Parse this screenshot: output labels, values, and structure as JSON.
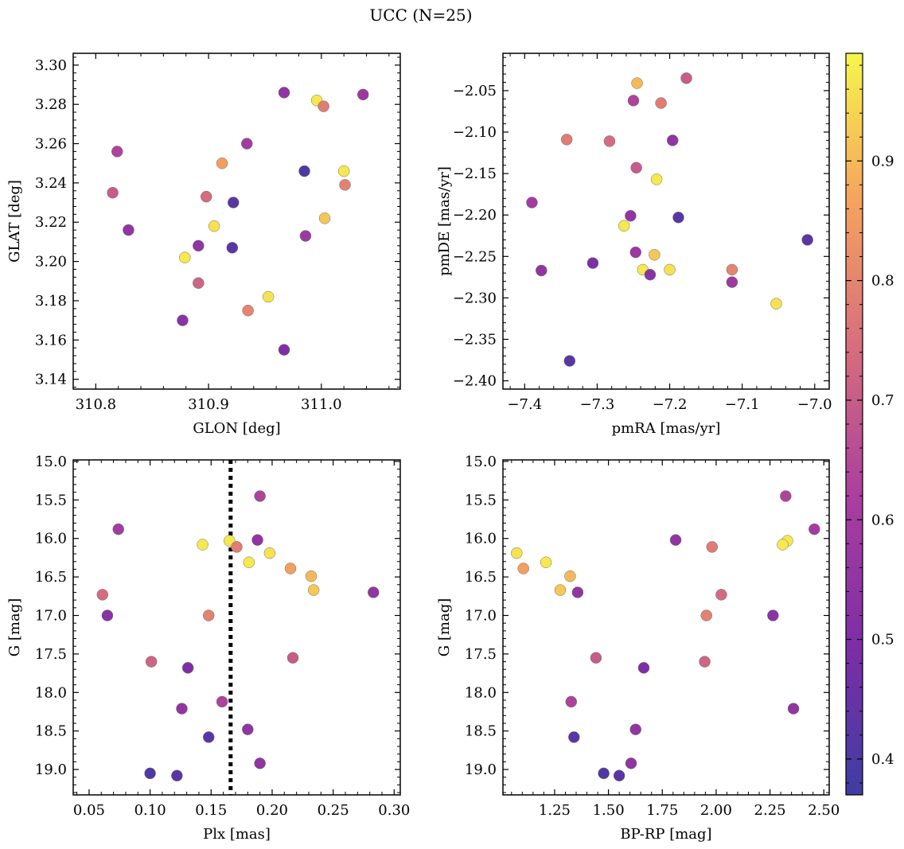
{
  "figure": {
    "title": "UCC (N=25)"
  },
  "colorbar": {
    "colormap": "plasma",
    "range": [
      0.37,
      0.99
    ],
    "ticks": [
      0.4,
      0.5,
      0.6,
      0.7,
      0.8,
      0.9
    ],
    "tick_labels": [
      "0.4",
      "0.5",
      "0.6",
      "0.7",
      "0.8",
      "0.9"
    ]
  },
  "chart_data": [
    {
      "type": "scatter",
      "title": "",
      "xlabel": "GLON [deg]",
      "ylabel": "GLAT [deg]",
      "xlim": [
        310.78,
        311.07
      ],
      "ylim": [
        3.135,
        3.306
      ],
      "xticks": [
        310.8,
        310.9,
        311.0
      ],
      "xtick_labels": [
        "310.8",
        "310.9",
        "311.0"
      ],
      "yticks": [
        3.14,
        3.16,
        3.18,
        3.2,
        3.22,
        3.24,
        3.26,
        3.28,
        3.3
      ],
      "ytick_labels": [
        "3.14",
        "3.16",
        "3.18",
        "3.20",
        "3.22",
        "3.24",
        "3.26",
        "3.28",
        "3.30"
      ],
      "points": [
        {
          "x": 310.967,
          "y": 3.286,
          "c": 0.55
        },
        {
          "x": 311.037,
          "y": 3.285,
          "c": 0.58
        },
        {
          "x": 310.996,
          "y": 3.282,
          "c": 0.97
        },
        {
          "x": 311.002,
          "y": 3.279,
          "c": 0.78
        },
        {
          "x": 310.819,
          "y": 3.256,
          "c": 0.63
        },
        {
          "x": 310.934,
          "y": 3.26,
          "c": 0.6
        },
        {
          "x": 310.912,
          "y": 3.25,
          "c": 0.86
        },
        {
          "x": 310.985,
          "y": 3.246,
          "c": 0.4
        },
        {
          "x": 311.02,
          "y": 3.246,
          "c": 0.97
        },
        {
          "x": 310.815,
          "y": 3.235,
          "c": 0.7
        },
        {
          "x": 311.021,
          "y": 3.239,
          "c": 0.79
        },
        {
          "x": 310.898,
          "y": 3.233,
          "c": 0.74
        },
        {
          "x": 310.922,
          "y": 3.23,
          "c": 0.42
        },
        {
          "x": 310.905,
          "y": 3.218,
          "c": 0.96
        },
        {
          "x": 311.003,
          "y": 3.222,
          "c": 0.92
        },
        {
          "x": 310.829,
          "y": 3.216,
          "c": 0.55
        },
        {
          "x": 310.891,
          "y": 3.208,
          "c": 0.55
        },
        {
          "x": 310.986,
          "y": 3.213,
          "c": 0.58
        },
        {
          "x": 310.921,
          "y": 3.207,
          "c": 0.42
        },
        {
          "x": 310.879,
          "y": 3.202,
          "c": 0.97
        },
        {
          "x": 310.891,
          "y": 3.189,
          "c": 0.72
        },
        {
          "x": 310.953,
          "y": 3.182,
          "c": 0.96
        },
        {
          "x": 310.935,
          "y": 3.175,
          "c": 0.8
        },
        {
          "x": 310.877,
          "y": 3.17,
          "c": 0.53
        },
        {
          "x": 310.967,
          "y": 3.155,
          "c": 0.5
        }
      ]
    },
    {
      "type": "scatter",
      "title": "",
      "xlabel": "pmRA [mas/yr]",
      "ylabel": "pmDE [mas/yr]",
      "xlim": [
        -7.43,
        -6.98
      ],
      "ylim": [
        -2.41,
        -2.005
      ],
      "xticks": [
        -7.4,
        -7.3,
        -7.2,
        -7.1,
        -7.0
      ],
      "xtick_labels": [
        "−7.4",
        "−7.3",
        "−7.2",
        "−7.1",
        "−7.0"
      ],
      "yticks": [
        -2.4,
        -2.35,
        -2.3,
        -2.25,
        -2.2,
        -2.15,
        -2.1,
        -2.05
      ],
      "ytick_labels": [
        "−2.40",
        "−2.35",
        "−2.30",
        "−2.25",
        "−2.20",
        "−2.15",
        "−2.10",
        "−2.05"
      ],
      "points": [
        {
          "x": -7.177,
          "y": -2.035,
          "c": 0.7
        },
        {
          "x": -7.245,
          "y": -2.041,
          "c": 0.9
        },
        {
          "x": -7.25,
          "y": -2.062,
          "c": 0.63
        },
        {
          "x": -7.212,
          "y": -2.065,
          "c": 0.78
        },
        {
          "x": -7.342,
          "y": -2.109,
          "c": 0.78
        },
        {
          "x": -7.283,
          "y": -2.111,
          "c": 0.74
        },
        {
          "x": -7.196,
          "y": -2.11,
          "c": 0.55
        },
        {
          "x": -7.246,
          "y": -2.143,
          "c": 0.7
        },
        {
          "x": -7.218,
          "y": -2.157,
          "c": 0.97
        },
        {
          "x": -7.39,
          "y": -2.185,
          "c": 0.6
        },
        {
          "x": -7.254,
          "y": -2.201,
          "c": 0.55
        },
        {
          "x": -7.188,
          "y": -2.203,
          "c": 0.42
        },
        {
          "x": -7.263,
          "y": -2.213,
          "c": 0.97
        },
        {
          "x": -7.01,
          "y": -2.23,
          "c": 0.42
        },
        {
          "x": -7.247,
          "y": -2.245,
          "c": 0.58
        },
        {
          "x": -7.221,
          "y": -2.248,
          "c": 0.92
        },
        {
          "x": -7.306,
          "y": -2.258,
          "c": 0.5
        },
        {
          "x": -7.377,
          "y": -2.267,
          "c": 0.55
        },
        {
          "x": -7.237,
          "y": -2.266,
          "c": 0.97
        },
        {
          "x": -7.2,
          "y": -2.266,
          "c": 0.96
        },
        {
          "x": -7.227,
          "y": -2.272,
          "c": 0.53
        },
        {
          "x": -7.114,
          "y": -2.266,
          "c": 0.8
        },
        {
          "x": -7.114,
          "y": -2.281,
          "c": 0.58
        },
        {
          "x": -7.053,
          "y": -2.307,
          "c": 0.96
        },
        {
          "x": -7.338,
          "y": -2.376,
          "c": 0.42
        }
      ]
    },
    {
      "type": "scatter",
      "title": "",
      "xlabel": "Plx [mas]",
      "ylabel": "G [mag]",
      "xlim": [
        0.037,
        0.305
      ],
      "ylim": [
        19.33,
        14.98
      ],
      "y_inverted": true,
      "vline": {
        "x": 0.166,
        "style": "dotted"
      },
      "xticks": [
        0.05,
        0.1,
        0.15,
        0.2,
        0.25,
        0.3
      ],
      "xtick_labels": [
        "0.05",
        "0.10",
        "0.15",
        "0.20",
        "0.25",
        "0.30"
      ],
      "yticks": [
        15.0,
        15.5,
        16.0,
        16.5,
        17.0,
        17.5,
        18.0,
        18.5,
        19.0
      ],
      "ytick_labels": [
        "15.0",
        "15.5",
        "16.0",
        "16.5",
        "17.0",
        "17.5",
        "18.0",
        "18.5",
        "19.0"
      ],
      "points": [
        {
          "x": 0.19,
          "y": 15.45,
          "c": 0.63
        },
        {
          "x": 0.074,
          "y": 15.88,
          "c": 0.6
        },
        {
          "x": 0.188,
          "y": 16.02,
          "c": 0.55
        },
        {
          "x": 0.165,
          "y": 16.03,
          "c": 0.97
        },
        {
          "x": 0.143,
          "y": 16.08,
          "c": 0.97
        },
        {
          "x": 0.171,
          "y": 16.11,
          "c": 0.78
        },
        {
          "x": 0.198,
          "y": 16.19,
          "c": 0.96
        },
        {
          "x": 0.181,
          "y": 16.31,
          "c": 0.97
        },
        {
          "x": 0.215,
          "y": 16.39,
          "c": 0.86
        },
        {
          "x": 0.232,
          "y": 16.49,
          "c": 0.9
        },
        {
          "x": 0.234,
          "y": 16.67,
          "c": 0.92
        },
        {
          "x": 0.283,
          "y": 16.7,
          "c": 0.55
        },
        {
          "x": 0.061,
          "y": 16.73,
          "c": 0.74
        },
        {
          "x": 0.065,
          "y": 17.0,
          "c": 0.53
        },
        {
          "x": 0.148,
          "y": 17.0,
          "c": 0.79
        },
        {
          "x": 0.101,
          "y": 17.6,
          "c": 0.72
        },
        {
          "x": 0.217,
          "y": 17.55,
          "c": 0.7
        },
        {
          "x": 0.131,
          "y": 17.68,
          "c": 0.5
        },
        {
          "x": 0.159,
          "y": 18.12,
          "c": 0.63
        },
        {
          "x": 0.126,
          "y": 18.21,
          "c": 0.55
        },
        {
          "x": 0.18,
          "y": 18.48,
          "c": 0.55
        },
        {
          "x": 0.148,
          "y": 18.58,
          "c": 0.42
        },
        {
          "x": 0.19,
          "y": 18.92,
          "c": 0.55
        },
        {
          "x": 0.1,
          "y": 19.05,
          "c": 0.4
        },
        {
          "x": 0.122,
          "y": 19.08,
          "c": 0.42
        }
      ]
    },
    {
      "type": "scatter",
      "title": "",
      "xlabel": "BP-RP [mag]",
      "ylabel": "G [mag]",
      "xlim": [
        1.01,
        2.525
      ],
      "ylim": [
        19.33,
        14.98
      ],
      "y_inverted": true,
      "xticks": [
        1.25,
        1.5,
        1.75,
        2.0,
        2.25,
        2.5
      ],
      "xtick_labels": [
        "1.25",
        "1.50",
        "1.75",
        "2.00",
        "2.25",
        "2.50"
      ],
      "yticks": [
        15.0,
        15.5,
        16.0,
        16.5,
        17.0,
        17.5,
        18.0,
        18.5,
        19.0
      ],
      "ytick_labels": [
        "15.0",
        "15.5",
        "16.0",
        "16.5",
        "17.0",
        "17.5",
        "18.0",
        "18.5",
        "19.0"
      ],
      "points": [
        {
          "x": 2.323,
          "y": 15.45,
          "c": 0.63
        },
        {
          "x": 2.456,
          "y": 15.88,
          "c": 0.6
        },
        {
          "x": 1.812,
          "y": 16.02,
          "c": 0.55
        },
        {
          "x": 2.331,
          "y": 16.03,
          "c": 0.97
        },
        {
          "x": 2.309,
          "y": 16.08,
          "c": 0.97
        },
        {
          "x": 1.981,
          "y": 16.11,
          "c": 0.78
        },
        {
          "x": 1.074,
          "y": 16.19,
          "c": 0.96
        },
        {
          "x": 1.21,
          "y": 16.31,
          "c": 0.97
        },
        {
          "x": 1.105,
          "y": 16.39,
          "c": 0.86
        },
        {
          "x": 1.322,
          "y": 16.49,
          "c": 0.9
        },
        {
          "x": 1.276,
          "y": 16.67,
          "c": 0.92
        },
        {
          "x": 1.357,
          "y": 16.7,
          "c": 0.55
        },
        {
          "x": 2.024,
          "y": 16.73,
          "c": 0.74
        },
        {
          "x": 2.264,
          "y": 17.0,
          "c": 0.53
        },
        {
          "x": 1.955,
          "y": 17.0,
          "c": 0.79
        },
        {
          "x": 1.947,
          "y": 17.6,
          "c": 0.72
        },
        {
          "x": 1.442,
          "y": 17.55,
          "c": 0.7
        },
        {
          "x": 1.664,
          "y": 17.68,
          "c": 0.5
        },
        {
          "x": 1.327,
          "y": 18.12,
          "c": 0.63
        },
        {
          "x": 2.359,
          "y": 18.21,
          "c": 0.55
        },
        {
          "x": 1.626,
          "y": 18.48,
          "c": 0.55
        },
        {
          "x": 1.34,
          "y": 18.58,
          "c": 0.42
        },
        {
          "x": 1.605,
          "y": 18.92,
          "c": 0.55
        },
        {
          "x": 1.478,
          "y": 19.05,
          "c": 0.4
        },
        {
          "x": 1.55,
          "y": 19.08,
          "c": 0.42
        }
      ]
    }
  ]
}
